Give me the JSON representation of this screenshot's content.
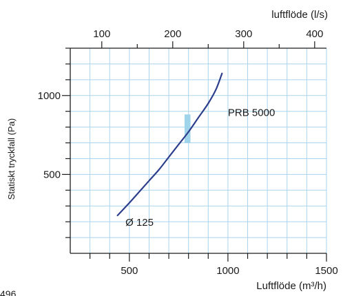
{
  "chart_data": {
    "type": "line",
    "xlabel": "Luftflöde (m³/h)",
    "x2label": "luftflöde (l/s)",
    "ylabel": "Statiskt tryckfall (Pa)",
    "xlim": [
      200,
      1500
    ],
    "ylim": [
      0,
      1300
    ],
    "x_ticks": [
      500,
      1000,
      1500
    ],
    "x2_ticks": [
      100,
      200,
      300,
      400
    ],
    "y_ticks": [
      500,
      1000
    ],
    "x_minor_step": 100,
    "y_minor_step": 100,
    "grid": true,
    "grid_color": "#a9d3ee",
    "axis_color": "#1a1a1a",
    "series": [
      {
        "name": "",
        "color": "#2c3e8c",
        "points": [
          [
            440,
            240
          ],
          [
            500,
            320
          ],
          [
            550,
            390
          ],
          [
            600,
            460
          ],
          [
            650,
            530
          ],
          [
            700,
            610
          ],
          [
            750,
            690
          ],
          [
            800,
            770
          ],
          [
            850,
            860
          ],
          [
            900,
            950
          ],
          [
            940,
            1040
          ],
          [
            970,
            1140
          ]
        ]
      }
    ],
    "band": {
      "x": [
        780,
        810
      ],
      "y": [
        700,
        880
      ],
      "color": "#9fd4ea"
    },
    "annotations": [
      {
        "text": "PRB 5000",
        "x": 1000,
        "y": 870
      },
      {
        "text": "Ø 125",
        "x": 480,
        "y": 175
      }
    ]
  },
  "corner_text": "496"
}
